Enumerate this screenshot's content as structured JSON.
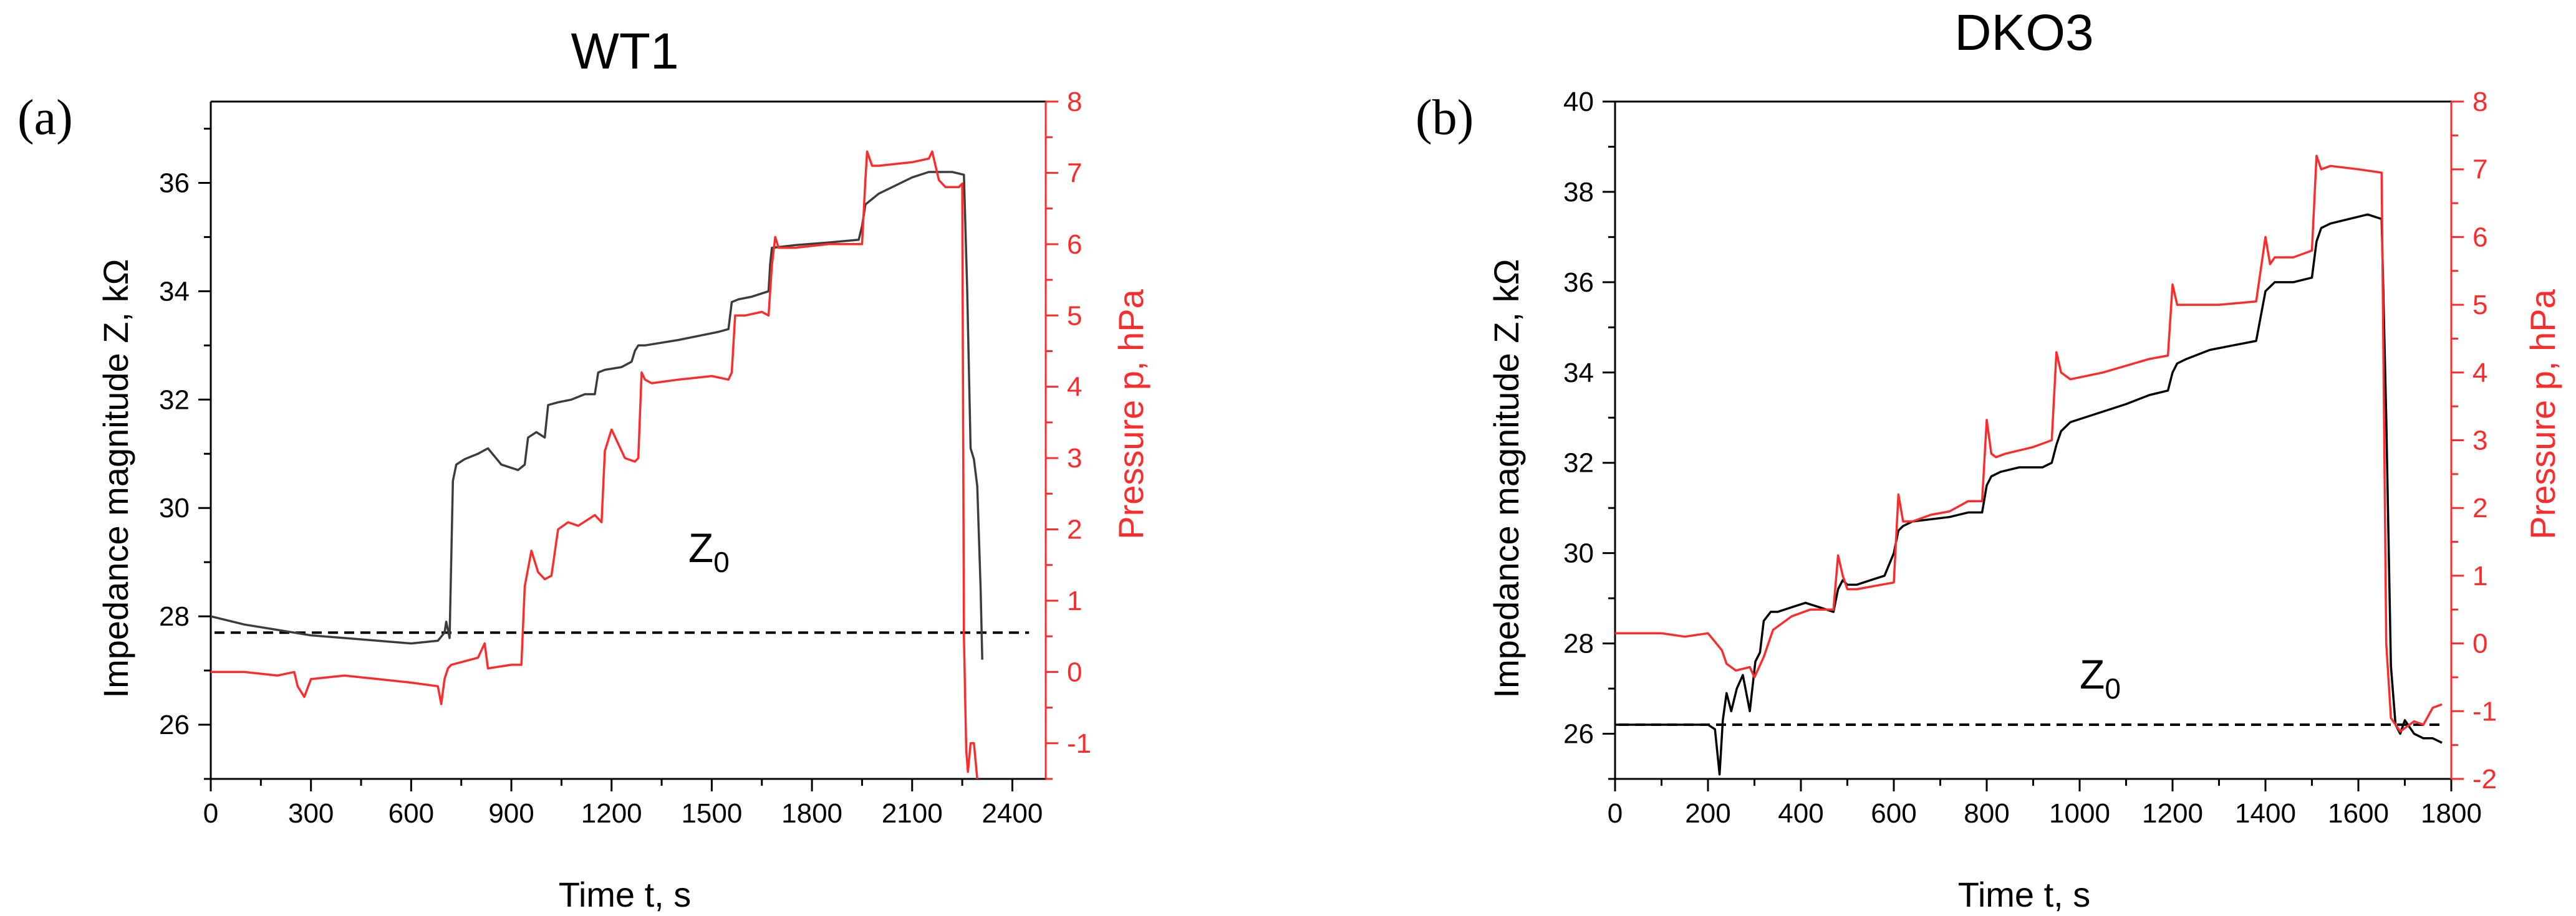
{
  "colors": {
    "impedance_a": "#3c3c3c",
    "impedance_b": "#000000",
    "pressure": "#ff2a2a",
    "reference": "#000000"
  },
  "chart_data": [
    {
      "panel_label": "(a)",
      "type": "line",
      "title": "WT1",
      "xlabel": "Time t, s",
      "ylabel": "Impedance magnitude Z, kΩ",
      "y2label": "Pressure p, hPa",
      "xlim": [
        0,
        2500
      ],
      "ylim": [
        25,
        37.5
      ],
      "y2lim": [
        -1.5,
        8
      ],
      "x_ticks": [
        "0",
        "300",
        "600",
        "900",
        "1200",
        "1500",
        "1800",
        "2100",
        "2400"
      ],
      "y_ticks": [
        "26",
        "28",
        "30",
        "32",
        "34",
        "36"
      ],
      "y2_ticks": [
        "-1",
        "0",
        "1",
        "2",
        "3",
        "4",
        "5",
        "6",
        "7",
        "8"
      ],
      "reference": {
        "label": "Z",
        "subscript": "0",
        "value": 27.7,
        "x_end": 2450,
        "label_x": 1430,
        "label_y": 29.0
      },
      "series": [
        {
          "name": "Impedance Z",
          "axis": "left",
          "color": "#3c3c3c",
          "x": [
            0,
            100,
            200,
            300,
            400,
            500,
            600,
            680,
            700,
            705,
            715,
            725,
            735,
            760,
            800,
            830,
            870,
            920,
            940,
            950,
            975,
            1000,
            1010,
            1040,
            1080,
            1120,
            1150,
            1160,
            1180,
            1230,
            1260,
            1270,
            1280,
            1300,
            1400,
            1520,
            1550,
            1560,
            1580,
            1620,
            1670,
            1675,
            1680,
            1750,
            1850,
            1940,
            1950,
            1960,
            2000,
            2100,
            2150,
            2220,
            2255,
            2265,
            2275,
            2285,
            2295,
            2305,
            2310
          ],
          "y": [
            28.0,
            27.85,
            27.75,
            27.65,
            27.6,
            27.55,
            27.5,
            27.55,
            27.7,
            27.9,
            27.6,
            30.5,
            30.8,
            30.9,
            31.0,
            31.1,
            30.8,
            30.7,
            30.8,
            31.3,
            31.4,
            31.3,
            31.9,
            31.95,
            32.0,
            32.1,
            32.1,
            32.5,
            32.55,
            32.6,
            32.7,
            32.9,
            33.0,
            33.0,
            33.1,
            33.25,
            33.3,
            33.8,
            33.85,
            33.9,
            34.0,
            34.5,
            34.8,
            34.85,
            34.9,
            34.95,
            35.2,
            35.6,
            35.8,
            36.1,
            36.2,
            36.2,
            36.15,
            34.0,
            31.1,
            30.9,
            30.4,
            28.5,
            27.2
          ]
        },
        {
          "name": "Pressure p",
          "axis": "right",
          "color": "#ff2a2a",
          "x": [
            0,
            100,
            200,
            250,
            260,
            280,
            300,
            400,
            500,
            600,
            680,
            690,
            700,
            710,
            720,
            760,
            800,
            820,
            830,
            900,
            930,
            940,
            960,
            980,
            1000,
            1020,
            1040,
            1070,
            1100,
            1150,
            1170,
            1180,
            1200,
            1240,
            1270,
            1280,
            1290,
            1300,
            1320,
            1400,
            1500,
            1550,
            1560,
            1570,
            1580,
            1600,
            1650,
            1670,
            1680,
            1690,
            1700,
            1750,
            1850,
            1950,
            1960,
            1965,
            1980,
            2000,
            2100,
            2150,
            2160,
            2180,
            2200,
            2240,
            2250,
            2255,
            2262,
            2267,
            2275,
            2285,
            2295
          ],
          "y": [
            0.0,
            0.0,
            -0.05,
            0.0,
            -0.2,
            -0.35,
            -0.1,
            -0.05,
            -0.1,
            -0.15,
            -0.2,
            -0.45,
            -0.1,
            0.05,
            0.1,
            0.15,
            0.2,
            0.4,
            0.05,
            0.1,
            0.1,
            1.2,
            1.7,
            1.4,
            1.3,
            1.35,
            2.0,
            2.1,
            2.05,
            2.2,
            2.1,
            3.1,
            3.4,
            3.0,
            2.95,
            3.0,
            4.2,
            4.1,
            4.05,
            4.1,
            4.15,
            4.1,
            4.2,
            5.0,
            5.0,
            5.0,
            5.05,
            5.0,
            5.7,
            6.1,
            5.95,
            5.95,
            6.0,
            6.0,
            6.9,
            7.3,
            7.1,
            7.1,
            7.15,
            7.2,
            7.3,
            6.9,
            6.8,
            6.8,
            6.85,
            0.5,
            -1.1,
            -1.4,
            -1.0,
            -1.0,
            -1.5
          ]
        }
      ]
    },
    {
      "panel_label": "(b)",
      "type": "line",
      "title": "DKO3",
      "xlabel": "Time t, s",
      "ylabel": "Impedance magnitude Z, kΩ",
      "y2label": "Pressure p, hPa",
      "xlim": [
        0,
        1800
      ],
      "ylim": [
        25,
        40
      ],
      "y2lim": [
        -2,
        8
      ],
      "x_ticks": [
        "0",
        "200",
        "400",
        "600",
        "800",
        "1000",
        "1200",
        "1400",
        "1600",
        "1800"
      ],
      "y_ticks": [
        "26",
        "28",
        "30",
        "32",
        "34",
        "36",
        "38",
        "40"
      ],
      "y2_ticks": [
        "-2",
        "-1",
        "0",
        "1",
        "2",
        "3",
        "4",
        "5",
        "6",
        "7",
        "8"
      ],
      "reference": {
        "label": "Z",
        "subscript": "0",
        "value": 26.2,
        "x_end": 1780,
        "label_x": 1000,
        "label_y": 27.0
      },
      "series": [
        {
          "name": "Impedance Z",
          "axis": "left",
          "color": "#000000",
          "x": [
            0,
            100,
            150,
            200,
            215,
            225,
            232,
            240,
            250,
            262,
            275,
            290,
            302,
            312,
            320,
            335,
            350,
            380,
            410,
            440,
            470,
            480,
            490,
            500,
            520,
            550,
            580,
            600,
            610,
            620,
            640,
            680,
            720,
            760,
            790,
            800,
            810,
            830,
            870,
            920,
            940,
            950,
            960,
            980,
            1040,
            1100,
            1150,
            1190,
            1200,
            1210,
            1230,
            1280,
            1330,
            1380,
            1400,
            1410,
            1420,
            1460,
            1500,
            1510,
            1520,
            1540,
            1580,
            1620,
            1650,
            1660,
            1670,
            1680,
            1690,
            1700,
            1720,
            1740,
            1760,
            1780
          ],
          "y": [
            26.2,
            26.2,
            26.2,
            26.2,
            26.1,
            25.1,
            26.3,
            26.9,
            26.5,
            27.0,
            27.3,
            26.5,
            27.6,
            27.8,
            28.5,
            28.7,
            28.7,
            28.8,
            28.9,
            28.8,
            28.7,
            29.2,
            29.4,
            29.3,
            29.3,
            29.4,
            29.5,
            30.0,
            30.5,
            30.6,
            30.7,
            30.75,
            30.8,
            30.9,
            30.9,
            31.5,
            31.7,
            31.8,
            31.9,
            31.9,
            32.0,
            32.4,
            32.7,
            32.9,
            33.1,
            33.3,
            33.5,
            33.6,
            34.0,
            34.2,
            34.3,
            34.5,
            34.6,
            34.7,
            35.8,
            35.9,
            36.0,
            36.0,
            36.1,
            36.9,
            37.2,
            37.3,
            37.4,
            37.5,
            37.4,
            33.0,
            27.5,
            26.2,
            26.0,
            26.3,
            26.0,
            25.9,
            25.9,
            25.8
          ]
        },
        {
          "name": "Pressure p",
          "axis": "right",
          "color": "#ff2a2a",
          "x": [
            0,
            100,
            150,
            200,
            230,
            240,
            260,
            290,
            300,
            320,
            340,
            360,
            380,
            420,
            470,
            480,
            490,
            500,
            520,
            560,
            600,
            610,
            620,
            640,
            680,
            720,
            760,
            790,
            800,
            810,
            820,
            840,
            900,
            940,
            950,
            960,
            980,
            1050,
            1100,
            1150,
            1190,
            1200,
            1210,
            1230,
            1300,
            1380,
            1400,
            1410,
            1420,
            1460,
            1500,
            1510,
            1520,
            1540,
            1600,
            1650,
            1660,
            1670,
            1680,
            1690,
            1700,
            1720,
            1740,
            1760,
            1780
          ],
          "y": [
            0.15,
            0.15,
            0.1,
            0.15,
            -0.1,
            -0.3,
            -0.4,
            -0.35,
            -0.5,
            -0.2,
            0.2,
            0.3,
            0.4,
            0.5,
            0.5,
            1.3,
            1.0,
            0.8,
            0.8,
            0.85,
            0.9,
            2.2,
            1.8,
            1.8,
            1.9,
            1.95,
            2.1,
            2.1,
            3.3,
            2.8,
            2.75,
            2.8,
            2.9,
            3.0,
            4.3,
            4.0,
            3.9,
            4.0,
            4.1,
            4.2,
            4.25,
            5.3,
            5.0,
            5.0,
            5.0,
            5.05,
            6.0,
            5.6,
            5.7,
            5.7,
            5.8,
            7.2,
            7.0,
            7.05,
            7.0,
            6.95,
            0.0,
            -1.1,
            -1.2,
            -1.3,
            -1.25,
            -1.15,
            -1.2,
            -0.95,
            -0.9
          ]
        }
      ]
    }
  ]
}
